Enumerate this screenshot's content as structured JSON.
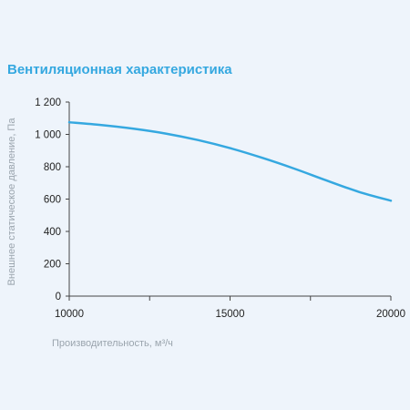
{
  "chart_data": {
    "type": "line",
    "title": "Вентиляционная характеристика",
    "xlabel": "Производительность, м³/ч",
    "ylabel": "Внешнее статическое давление, Па",
    "xlim": [
      10000,
      20000
    ],
    "ylim": [
      0,
      1200
    ],
    "x_ticks": [
      {
        "value": 10000,
        "label": "10000"
      },
      {
        "value": 15000,
        "label": "15000"
      },
      {
        "value": 20000,
        "label": "20000"
      }
    ],
    "x_minor_ticks": [
      12500,
      17500
    ],
    "y_ticks": [
      {
        "value": 0,
        "label": "0"
      },
      {
        "value": 200,
        "label": "200"
      },
      {
        "value": 400,
        "label": "400"
      },
      {
        "value": 600,
        "label": "600"
      },
      {
        "value": 800,
        "label": "800"
      },
      {
        "value": 1000,
        "label": "1 000"
      },
      {
        "value": 1200,
        "label": "1 200"
      }
    ],
    "grid": false,
    "series": [
      {
        "color": "#35a8e0",
        "x": [
          10000,
          11000,
          12000,
          13000,
          14000,
          15000,
          16000,
          17000,
          18000,
          19000,
          20000
        ],
        "y": [
          1075,
          1058,
          1035,
          1005,
          965,
          915,
          855,
          788,
          715,
          645,
          590
        ]
      }
    ]
  }
}
